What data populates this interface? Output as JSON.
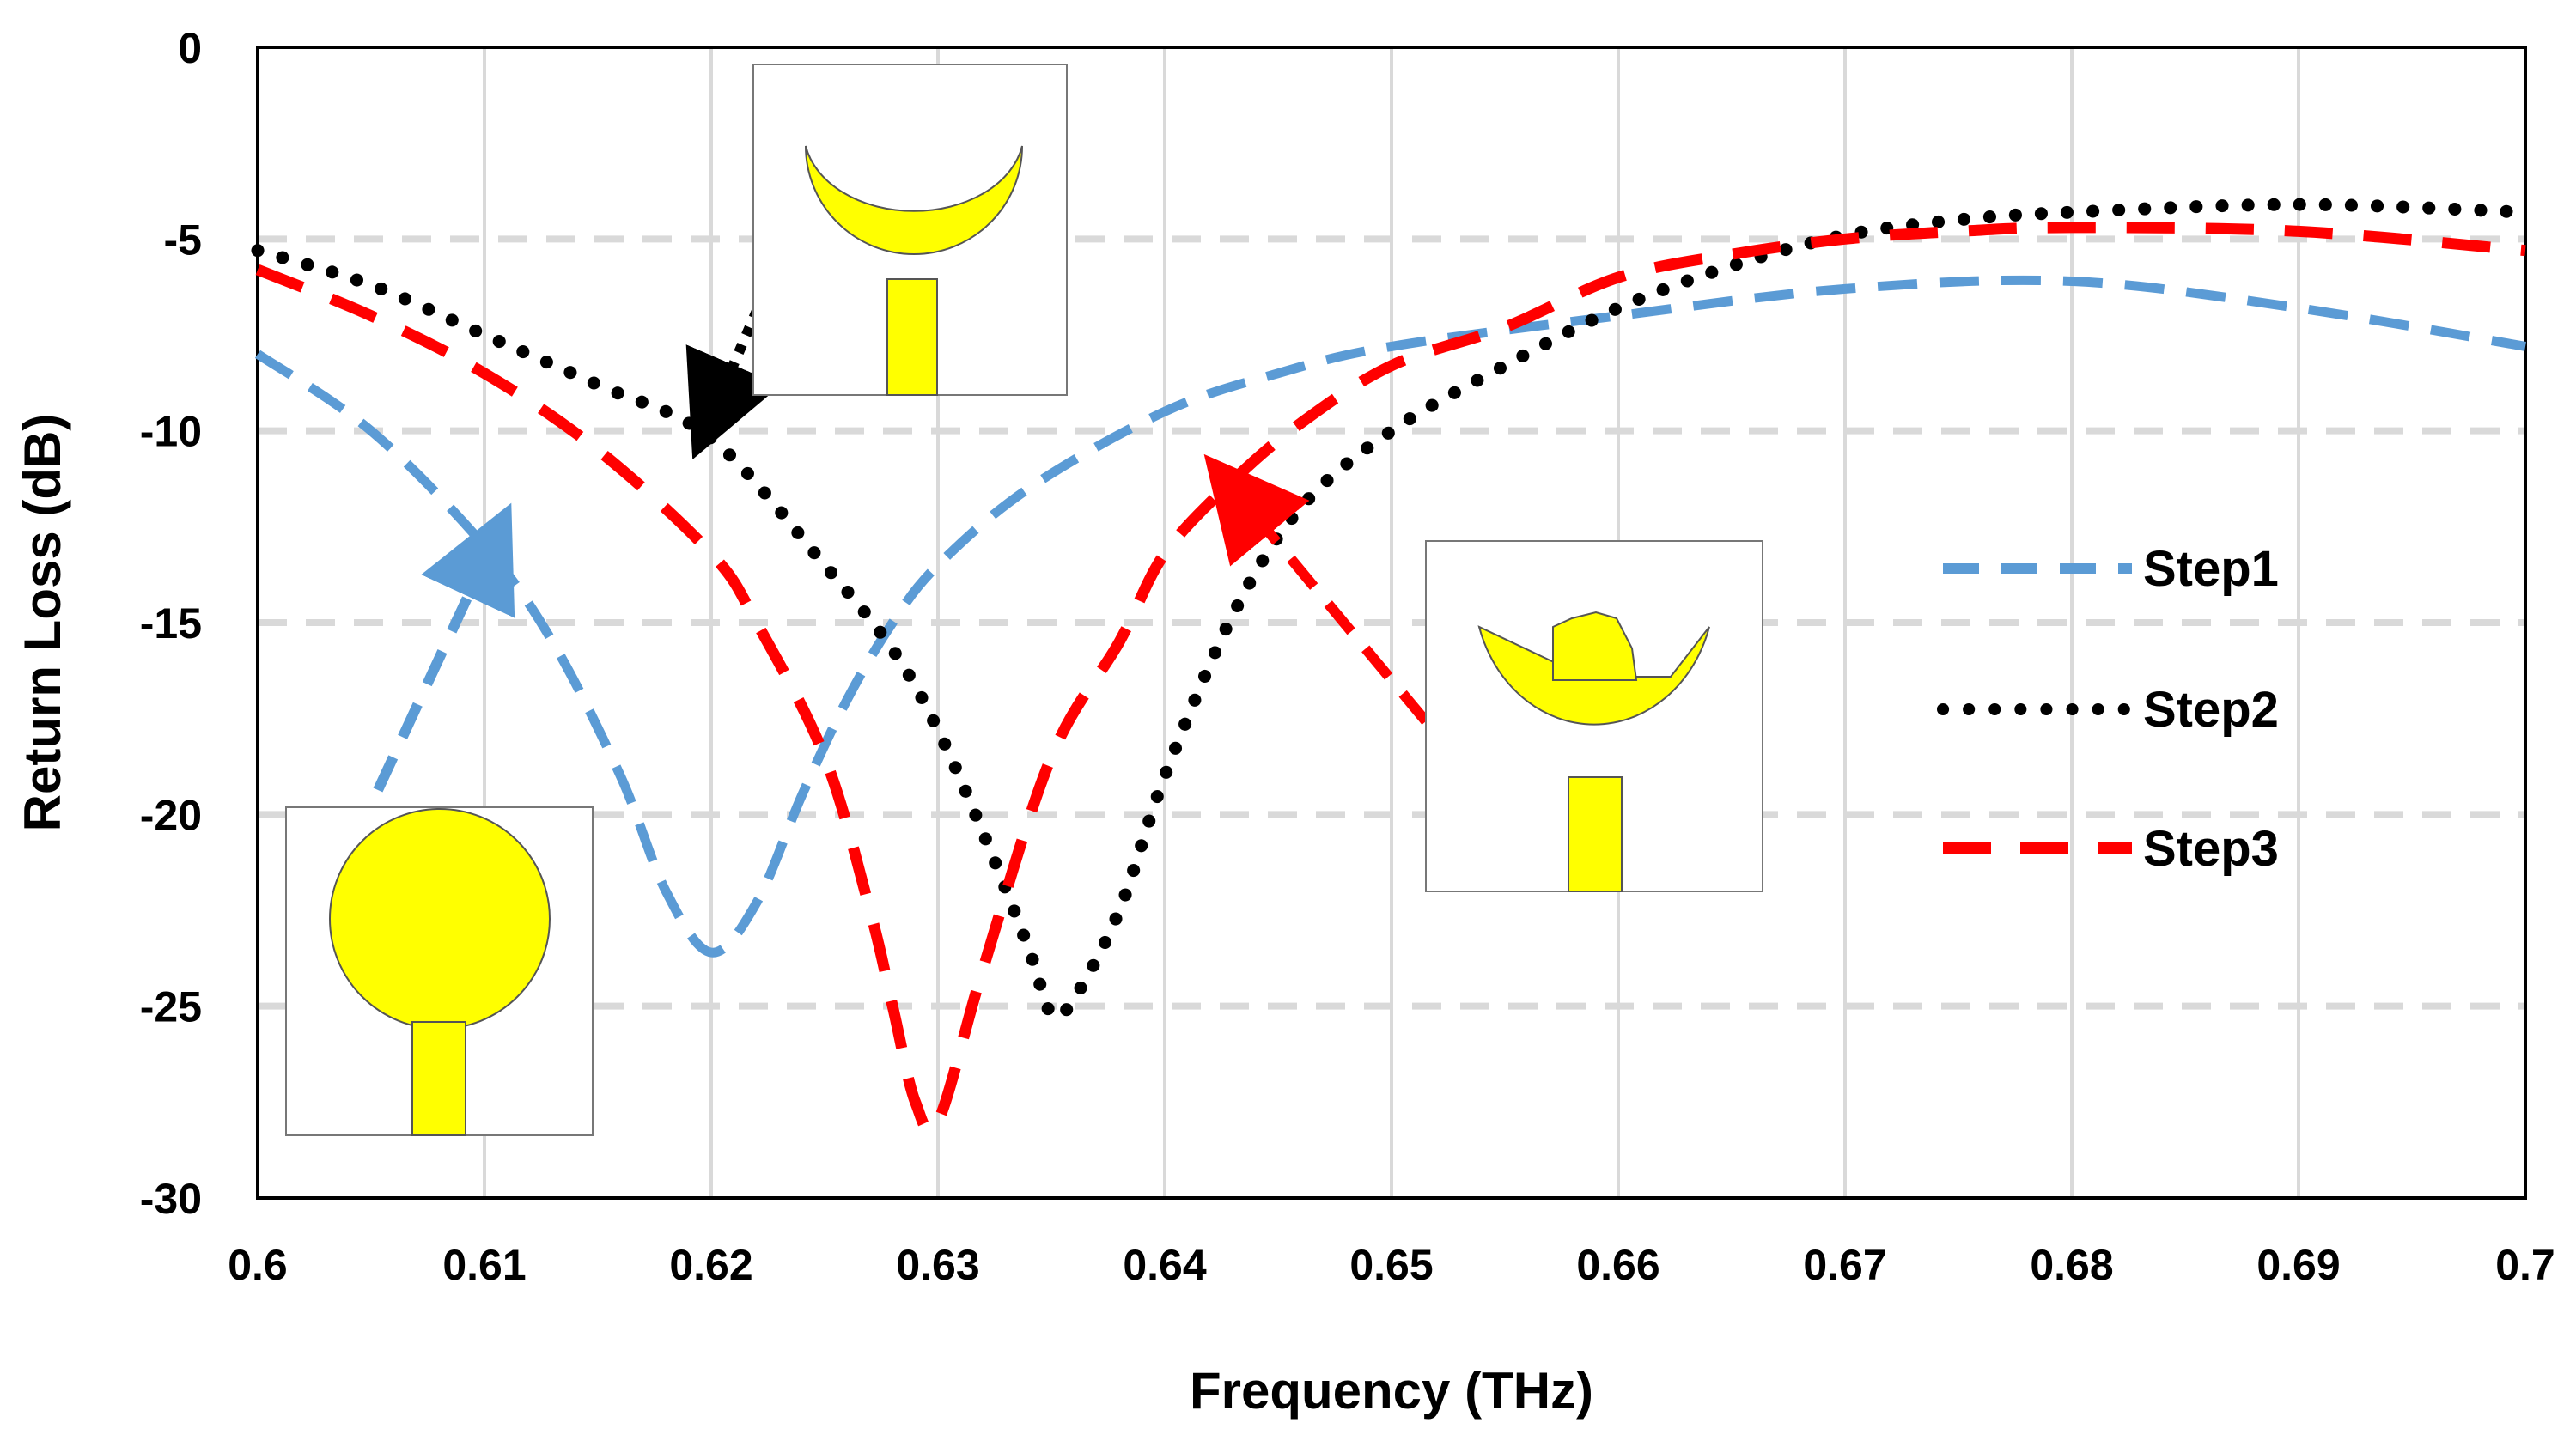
{
  "chart_data": {
    "type": "line",
    "xlabel": "Frequency (THz)",
    "ylabel": "Return Loss (dB)",
    "xlim": [
      0.6,
      0.7
    ],
    "ylim": [
      -30,
      0
    ],
    "x_ticks": [
      0.6,
      0.61,
      0.62,
      0.63,
      0.64,
      0.65,
      0.66,
      0.67,
      0.68,
      0.69,
      0.7
    ],
    "x_tick_labels": [
      "0.6",
      "0.61",
      "0.62",
      "0.63",
      "0.64",
      "0.65",
      "0.66",
      "0.67",
      "0.68",
      "0.69",
      "0.7"
    ],
    "y_ticks": [
      0,
      -5,
      -10,
      -15,
      -20,
      -25,
      -30
    ],
    "y_tick_labels": [
      "0",
      "-5",
      "-10",
      "-15",
      "-20",
      "-25",
      "-30"
    ],
    "grid": true,
    "legend_position": "right",
    "series": [
      {
        "name": "Step1",
        "color": "#5B9BD5",
        "style": "dashed",
        "x": [
          0.6,
          0.605,
          0.61,
          0.613,
          0.616,
          0.618,
          0.62,
          0.622,
          0.624,
          0.626,
          0.628,
          0.63,
          0.634,
          0.64,
          0.645,
          0.65,
          0.66,
          0.67,
          0.68,
          0.69,
          0.7
        ],
        "y": [
          -8.0,
          -10.0,
          -13.0,
          -15.5,
          -19.0,
          -22.0,
          -23.6,
          -22.3,
          -19.5,
          -17.0,
          -15.0,
          -13.5,
          -11.5,
          -9.5,
          -8.5,
          -7.8,
          -7.0,
          -6.3,
          -6.1,
          -6.8,
          -7.8
        ]
      },
      {
        "name": "Step2",
        "color": "#000000",
        "style": "dotted",
        "x": [
          0.6,
          0.605,
          0.61,
          0.615,
          0.62,
          0.625,
          0.628,
          0.63,
          0.632,
          0.634,
          0.635,
          0.636,
          0.638,
          0.64,
          0.643,
          0.646,
          0.65,
          0.655,
          0.66,
          0.665,
          0.67,
          0.675,
          0.68,
          0.69,
          0.7
        ],
        "y": [
          -5.3,
          -6.2,
          -7.5,
          -8.8,
          -10.2,
          -13.5,
          -15.7,
          -17.8,
          -20.5,
          -23.5,
          -25.2,
          -24.8,
          -22.5,
          -19.0,
          -14.8,
          -12.0,
          -10.0,
          -8.3,
          -6.8,
          -5.7,
          -4.9,
          -4.5,
          -4.3,
          -4.1,
          -4.3
        ]
      },
      {
        "name": "Step3",
        "color": "#FF0000",
        "style": "dashed",
        "x": [
          0.6,
          0.605,
          0.61,
          0.615,
          0.62,
          0.622,
          0.625,
          0.627,
          0.628,
          0.629,
          0.63,
          0.632,
          0.635,
          0.638,
          0.64,
          0.643,
          0.646,
          0.65,
          0.655,
          0.66,
          0.665,
          0.67,
          0.675,
          0.68,
          0.69,
          0.7
        ],
        "y": [
          -5.8,
          -7.0,
          -8.5,
          -10.5,
          -13.2,
          -15.0,
          -18.5,
          -22.5,
          -25.0,
          -27.5,
          -28.0,
          -24.0,
          -18.5,
          -15.5,
          -13.2,
          -11.3,
          -9.8,
          -8.3,
          -7.3,
          -6.0,
          -5.4,
          -5.0,
          -4.8,
          -4.7,
          -4.8,
          -5.3
        ]
      }
    ]
  },
  "insets": [
    {
      "label": "Step1 antenna geometry",
      "shape": "circle-patch",
      "color": "#FFFF00"
    },
    {
      "label": "Step2 antenna geometry",
      "shape": "crescent-patch",
      "color": "#FFFF00"
    },
    {
      "label": "Step3 antenna geometry",
      "shape": "crescent-with-head-patch",
      "color": "#FFFF00"
    }
  ],
  "legend_entries": [
    {
      "label": "Step1",
      "color": "#5B9BD5",
      "style": "dashed"
    },
    {
      "label": "Step2",
      "color": "#000000",
      "style": "dotted"
    },
    {
      "label": "Step3",
      "color": "#FF0000",
      "style": "dashed"
    }
  ]
}
